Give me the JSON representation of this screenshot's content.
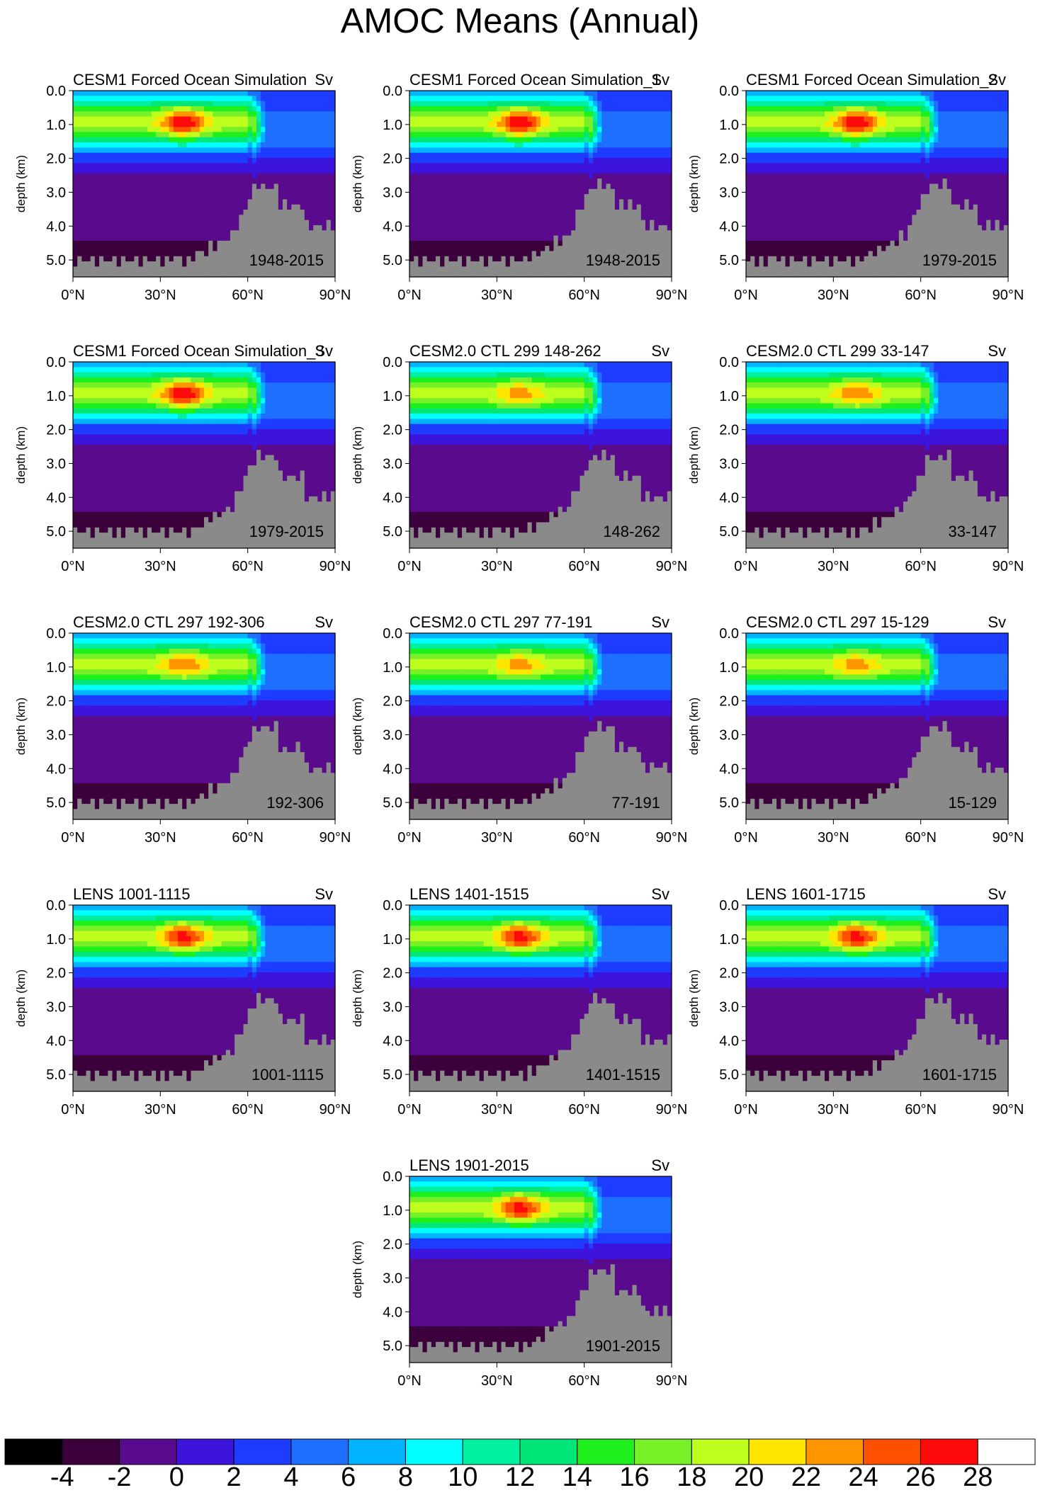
{
  "title": "AMOC Means (Annual)",
  "chart_data": {
    "type": "heatmap",
    "title": "AMOC Means (Annual)",
    "panels": [
      {
        "title": "CESM1 Forced Ocean Simulation",
        "units": "Sv",
        "period": "1948-2015"
      },
      {
        "title": "CESM1 Forced Ocean Simulation_1",
        "units": "Sv",
        "period": "1948-2015"
      },
      {
        "title": "CESM1 Forced Ocean Simulation_2",
        "units": "Sv",
        "period": "1979-2015"
      },
      {
        "title": "CESM1 Forced Ocean Simulation_3",
        "units": "Sv",
        "period": "1979-2015"
      },
      {
        "title": "CESM2.0 CTL 299 148-262",
        "units": "Sv",
        "period": "148-262"
      },
      {
        "title": "CESM2.0 CTL 299 33-147",
        "units": "Sv",
        "period": "33-147"
      },
      {
        "title": "CESM2.0 CTL 297 192-306",
        "units": "Sv",
        "period": "192-306"
      },
      {
        "title": "CESM2.0 CTL 297 77-191",
        "units": "Sv",
        "period": "77-191"
      },
      {
        "title": "CESM2.0 CTL 297 15-129",
        "units": "Sv",
        "period": "15-129"
      },
      {
        "title": "LENS 1001-1115",
        "units": "Sv",
        "period": "1001-1115"
      },
      {
        "title": "LENS 1401-1515",
        "units": "Sv",
        "period": "1401-1515"
      },
      {
        "title": "LENS 1601-1715",
        "units": "Sv",
        "period": "1601-1715"
      },
      {
        "title": "LENS 1901-2015",
        "units": "Sv",
        "period": "1901-2015"
      }
    ],
    "ylabel": "depth (km)",
    "y_ticks": [
      "0.0",
      "1.0",
      "2.0",
      "3.0",
      "4.0",
      "5.0"
    ],
    "ylim": [
      0,
      5.5
    ],
    "x_ticks": [
      "0°N",
      "30°N",
      "60°N",
      "90°N"
    ],
    "xlim": [
      0,
      90
    ],
    "colorbar": {
      "labels": [
        "-4",
        "-2",
        "0",
        "2",
        "4",
        "6",
        "8",
        "10",
        "12",
        "14",
        "16",
        "18",
        "20",
        "22",
        "24",
        "26",
        "28"
      ],
      "levels": [
        -4,
        -2,
        0,
        2,
        4,
        6,
        8,
        10,
        12,
        14,
        16,
        18,
        20,
        22,
        24,
        26,
        28
      ],
      "colors": [
        "#000000",
        "#3c003c",
        "#5a0a8c",
        "#3c14dc",
        "#1e3cff",
        "#1e6eff",
        "#00b4ff",
        "#00ffff",
        "#00f0a0",
        "#00e678",
        "#1ef01e",
        "#78f028",
        "#beff1e",
        "#ffe600",
        "#ff9600",
        "#ff5000",
        "#ff0a0a",
        "#ffffff"
      ]
    },
    "land_color": "#8a8a8a",
    "max_center_sv": [
      27,
      27,
      27,
      27,
      22,
      23,
      23,
      22,
      22,
      26,
      26,
      26,
      26
    ]
  }
}
